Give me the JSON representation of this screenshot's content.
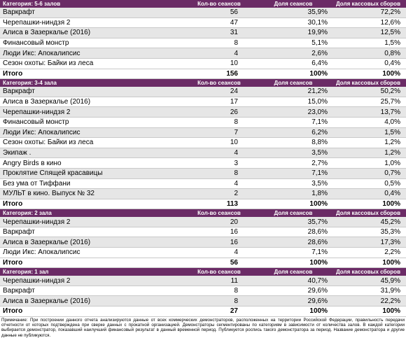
{
  "columns": {
    "sessions": "Кол-во сеансов",
    "share": "Доля сеансов",
    "boxoffice": "Доля кассовых сборов"
  },
  "categories": [
    {
      "title": "Категория: 5-6 залов",
      "rows": [
        {
          "film": "Варкрафт",
          "sessions": "56",
          "share": "35,9%",
          "box": "72,2%"
        },
        {
          "film": "Черепашки-ниндзя 2",
          "sessions": "47",
          "share": "30,1%",
          "box": "12,6%"
        },
        {
          "film": "Алиса в Зазеркалье (2016)",
          "sessions": "31",
          "share": "19,9%",
          "box": "12,5%"
        },
        {
          "film": "Финансовый монстр",
          "sessions": "8",
          "share": "5,1%",
          "box": "1,5%"
        },
        {
          "film": "Люди Икс: Апокалипсис",
          "sessions": "4",
          "share": "2,6%",
          "box": "0,8%"
        },
        {
          "film": "Сезон охоты: Байки из леса",
          "sessions": "10",
          "share": "6,4%",
          "box": "0,4%"
        }
      ],
      "total": {
        "label": "Итого",
        "sessions": "156",
        "share": "100%",
        "box": "100%"
      }
    },
    {
      "title": "Категория: 3-4 зала",
      "rows": [
        {
          "film": "Варкрафт",
          "sessions": "24",
          "share": "21,2%",
          "box": "50,2%"
        },
        {
          "film": "Алиса в Зазеркалье (2016)",
          "sessions": "17",
          "share": "15,0%",
          "box": "25,7%"
        },
        {
          "film": "Черепашки-ниндзя 2",
          "sessions": "26",
          "share": "23,0%",
          "box": "13,7%"
        },
        {
          "film": "Финансовый монстр",
          "sessions": "8",
          "share": "7,1%",
          "box": "4,0%"
        },
        {
          "film": "Люди Икс: Апокалипсис",
          "sessions": "7",
          "share": "6,2%",
          "box": "1,5%"
        },
        {
          "film": "Сезон охоты: Байки из леса",
          "sessions": "10",
          "share": "8,8%",
          "box": "1,2%"
        },
        {
          "film": "Экипаж .",
          "sessions": "4",
          "share": "3,5%",
          "box": "1,2%"
        },
        {
          "film": "Angry Birds в кино",
          "sessions": "3",
          "share": "2,7%",
          "box": "1,0%"
        },
        {
          "film": "Проклятие Спящей красавицы",
          "sessions": "8",
          "share": "7,1%",
          "box": "0,7%"
        },
        {
          "film": "Без ума от Тиффани",
          "sessions": "4",
          "share": "3,5%",
          "box": "0,5%"
        },
        {
          "film": "МУЛЬТ в кино. Выпуск № 32",
          "sessions": "2",
          "share": "1,8%",
          "box": "0,4%"
        }
      ],
      "total": {
        "label": "Итого",
        "sessions": "113",
        "share": "100%",
        "box": "100%"
      }
    },
    {
      "title": "Категория: 2 зала",
      "rows": [
        {
          "film": "Черепашки-ниндзя 2",
          "sessions": "20",
          "share": "35,7%",
          "box": "45,2%"
        },
        {
          "film": "Варкрафт",
          "sessions": "16",
          "share": "28,6%",
          "box": "35,3%"
        },
        {
          "film": "Алиса в Зазеркалье (2016)",
          "sessions": "16",
          "share": "28,6%",
          "box": "17,3%"
        },
        {
          "film": "Люди Икс: Апокалипсис",
          "sessions": "4",
          "share": "7,1%",
          "box": "2,2%"
        }
      ],
      "total": {
        "label": "Итого",
        "sessions": "56",
        "share": "100%",
        "box": "100%"
      }
    },
    {
      "title": "Категория: 1 зал",
      "rows": [
        {
          "film": "Черепашки-ниндзя 2",
          "sessions": "11",
          "share": "40,7%",
          "box": "45,9%"
        },
        {
          "film": "Варкрафт",
          "sessions": "8",
          "share": "29,6%",
          "box": "31,9%"
        },
        {
          "film": "Алиса в Зазеркалье (2016)",
          "sessions": "8",
          "share": "29,6%",
          "box": "22,2%"
        }
      ],
      "total": {
        "label": "Итого",
        "sessions": "27",
        "share": "100%",
        "box": "100%"
      }
    }
  ],
  "footnote": "Примечание: При построении данного отчета анализируются данные от всех коммерческих демонстраторов, расположенных на территории Российской Федерации, правильность передачи отчетности от которых подтверждена при сверке данных с прокатной организацией. Демонстраторы сегментированы по категориям в зависимости от количества залов. В каждой категории выбирается демонстратор, показавший наилучший финансовый результат в данный временной период. Публикуется роспись такого демонстратора за период. Название демонстратора и другие данные не публикуются."
}
